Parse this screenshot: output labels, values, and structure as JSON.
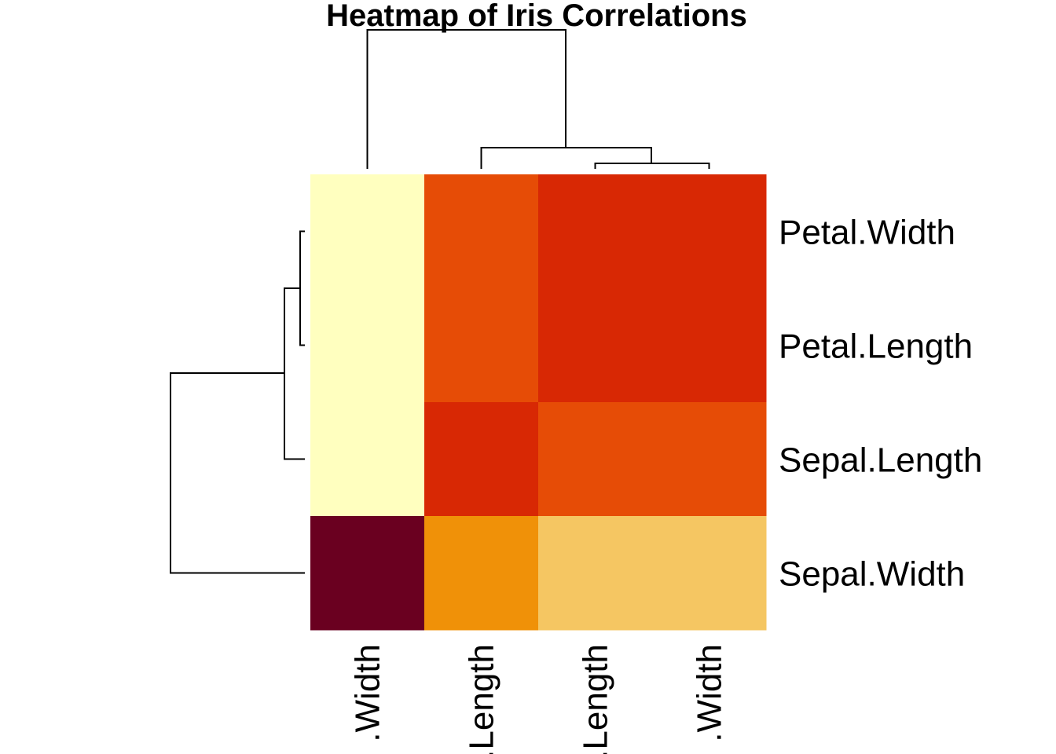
{
  "chart_data": {
    "type": "heatmap",
    "title": "Heatmap of Iris Correlations",
    "xlabel": "",
    "ylabel": "",
    "column_labels": [
      "Sepal.Width",
      "Sepal.Length",
      "Petal.Length",
      "Petal.Width"
    ],
    "column_labels_visible": [
      ".Width",
      ".Length",
      ".Length",
      ".Width"
    ],
    "row_labels": [
      "Petal.Width",
      "Petal.Length",
      "Sepal.Length",
      "Sepal.Width"
    ],
    "values": [
      [
        -0.37,
        0.82,
        0.96,
        0.96
      ],
      [
        -0.43,
        0.87,
        0.96,
        0.96
      ],
      [
        -0.12,
        0.96,
        0.87,
        0.82
      ],
      [
        1.0,
        -0.12,
        -0.43,
        -0.37
      ]
    ],
    "color_scale": [
      "#FFFFBF",
      "#F5C662",
      "#F09108",
      "#E64C06",
      "#D82804",
      "#6A0020"
    ],
    "cell_colors": [
      [
        "#FFFFBF",
        "#E64C06",
        "#D82804",
        "#D82804"
      ],
      [
        "#FFFFBF",
        "#E64C06",
        "#D82804",
        "#D82804"
      ],
      [
        "#FFFFBF",
        "#D82804",
        "#E64C06",
        "#E64C06"
      ],
      [
        "#6A0020",
        "#F09108",
        "#F5C662",
        "#F5C662"
      ]
    ],
    "column_dendrogram": true,
    "row_dendrogram": true,
    "legend": "none",
    "grid": false
  }
}
